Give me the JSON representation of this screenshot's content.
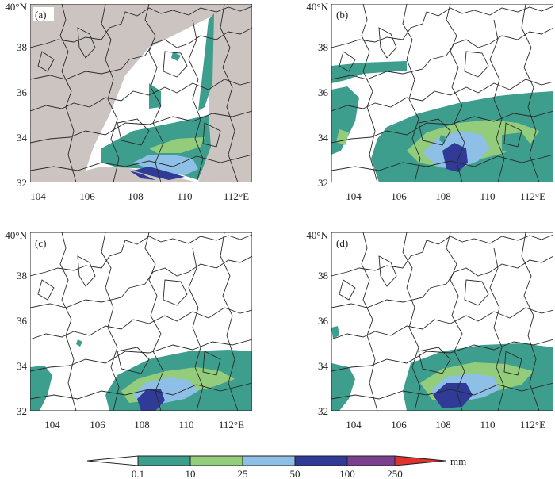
{
  "panels": [
    {
      "label": "(a)",
      "has_mask": true
    },
    {
      "label": "(b)",
      "has_mask": false
    },
    {
      "label": "(c)",
      "has_mask": false
    },
    {
      "label": "(d)",
      "has_mask": false
    }
  ],
  "x_ticks": [
    "104",
    "106",
    "108",
    "110",
    "112°E"
  ],
  "y_ticks": [
    "32",
    "34",
    "36",
    "38",
    "40°N"
  ],
  "colorbar": {
    "labels": [
      "0.1",
      "10",
      "25",
      "50",
      "100",
      "250"
    ],
    "unit": "mm",
    "colors": [
      "#ffffff",
      "#3e9e8e",
      "#93cd7b",
      "#8ebfe6",
      "#2f3b96",
      "#7a3f8f",
      "#e0332e"
    ]
  },
  "colors": {
    "mask": "#cbc4c1",
    "boundary": "#2a2a2a",
    "teal": "#3e9e8e",
    "lightgreen": "#93cd7b",
    "lightblue": "#8ebfe6",
    "darkblue": "#2f3b96"
  }
}
